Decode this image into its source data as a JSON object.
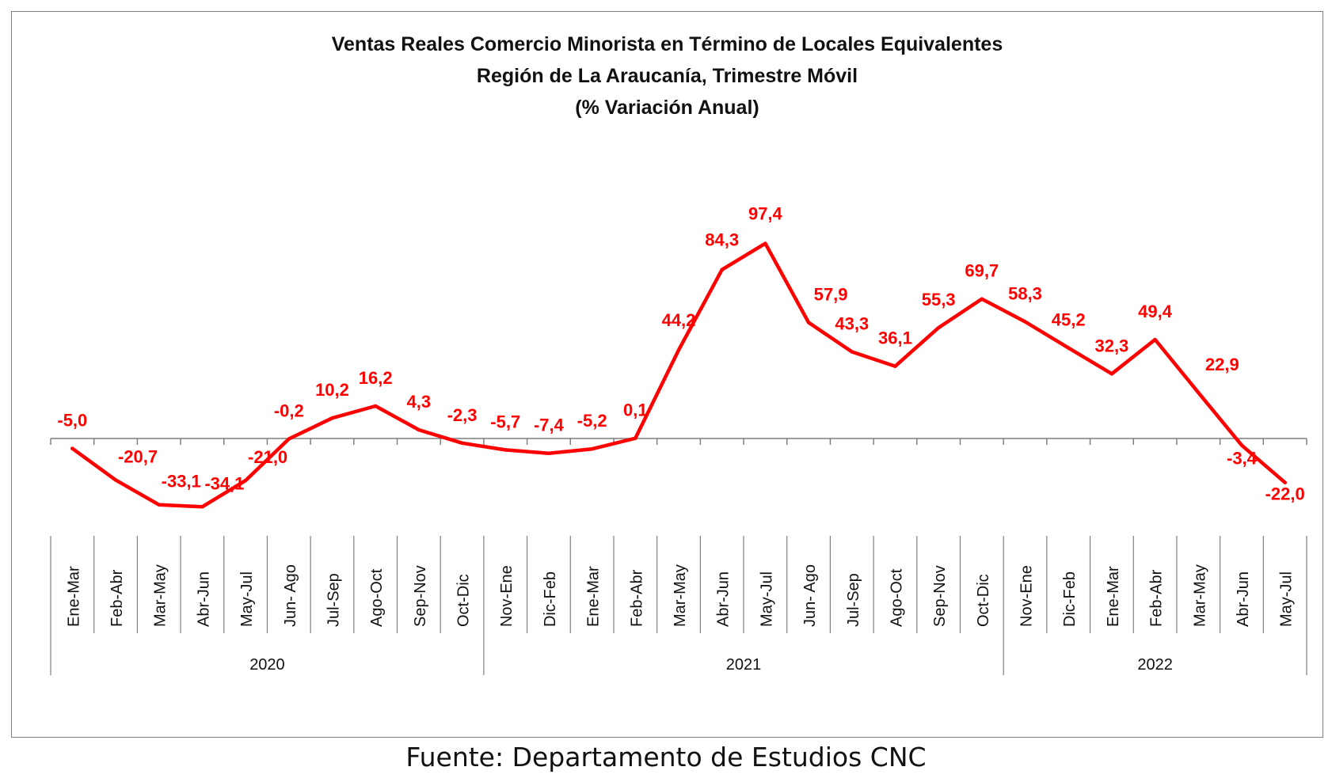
{
  "chart_data": {
    "type": "line",
    "title": "Ventas Reales Comercio Minorista  en Término de Locales Equivalentes",
    "subtitle": [
      "Región de La Araucanía, Trimestre Móvil",
      "(% Variación Anual)"
    ],
    "categories": [
      "Ene-Mar",
      "Feb-Abr",
      "Mar-May",
      "Abr-Jun",
      "May-Jul",
      "Jun- Ago",
      "Jul-Sep",
      "Ago-Oct",
      "Sep-Nov",
      "Oct-Dic",
      "Nov-Ene",
      "Dic-Feb",
      "Ene-Mar",
      "Feb-Abr",
      "Mar-May",
      "Abr-Jun",
      "May-Jul",
      "Jun- Ago",
      "Jul-Sep",
      "Ago-Oct",
      "Sep-Nov",
      "Oct-Dic",
      "Nov-Ene",
      "Dic-Feb",
      "Ene-Mar",
      "Feb-Abr",
      "Mar-May",
      "Abr-Jun",
      "May-Jul"
    ],
    "groups": [
      {
        "label": "2020",
        "count": 10
      },
      {
        "label": "2021",
        "count": 12
      },
      {
        "label": "2022",
        "count": 7
      }
    ],
    "series": [
      {
        "values": [
          -5.0,
          -20.7,
          -33.1,
          -34.1,
          -21.0,
          -0.2,
          10.2,
          16.2,
          4.3,
          -2.3,
          -5.7,
          -7.4,
          -5.2,
          0.1,
          44.2,
          84.3,
          97.4,
          57.9,
          43.3,
          36.1,
          55.3,
          69.7,
          58.3,
          45.2,
          32.3,
          49.4,
          22.9,
          -3.4,
          -22.0
        ],
        "labels": [
          "-5,0",
          "-20,7",
          "-33,1",
          "-34,1",
          "-21,0",
          "-0,2",
          "10,2",
          "16,2",
          "4,3",
          "-2,3",
          "-5,7",
          "-7,4",
          "-5,2",
          "0,1",
          "44,2",
          "84,3",
          "97,4",
          "57,9",
          "43,3",
          "36,1",
          "55,3",
          "69,7",
          "58,3",
          "45,2",
          "32,3",
          "49,4",
          "22,9",
          "-3,4",
          "-22,0"
        ],
        "color": "#ff0000"
      }
    ],
    "grid": false,
    "legend": "none"
  },
  "source": "Fuente: Departamento de Estudios CNC"
}
